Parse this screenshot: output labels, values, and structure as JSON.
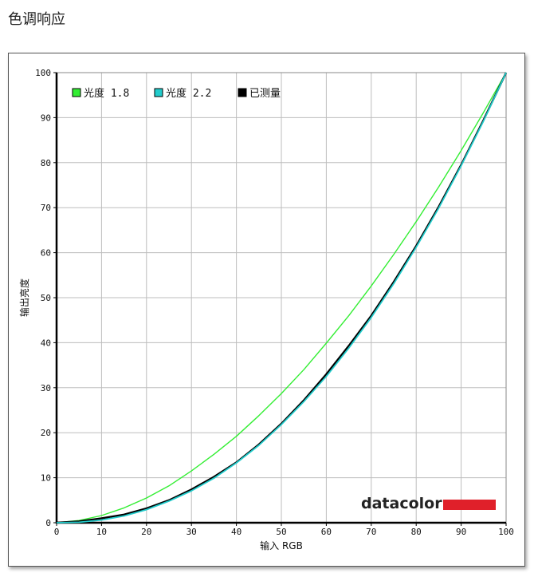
{
  "page": {
    "title": "色调响应"
  },
  "chart_data": {
    "type": "line",
    "title": "",
    "xlabel": "输入 RGB",
    "ylabel": "输出亮度",
    "xlim": [
      0,
      100
    ],
    "ylim": [
      0,
      100
    ],
    "xticks": [
      0,
      10,
      20,
      30,
      40,
      50,
      60,
      70,
      80,
      90,
      100
    ],
    "yticks": [
      0,
      10,
      20,
      30,
      40,
      50,
      60,
      70,
      80,
      90,
      100
    ],
    "grid": true,
    "legend": "top-left",
    "x": [
      0,
      5,
      10,
      15,
      20,
      25,
      30,
      35,
      40,
      45,
      50,
      55,
      60,
      65,
      70,
      75,
      80,
      85,
      90,
      95,
      100
    ],
    "series": [
      {
        "name": "光度 1.8",
        "color": "#33ee33",
        "values": [
          0,
          0.5,
          1.6,
          3.3,
          5.5,
          8.2,
          11.5,
          15.2,
          19.2,
          23.8,
          28.7,
          34.0,
          39.9,
          46.0,
          52.6,
          59.6,
          66.9,
          74.6,
          82.7,
          91.2,
          100
        ]
      },
      {
        "name": "光度 2.2",
        "color": "#22cccc",
        "values": [
          0,
          0.1,
          0.6,
          1.5,
          2.9,
          4.8,
          7.1,
          9.9,
          13.3,
          17.2,
          21.8,
          26.9,
          32.5,
          38.8,
          45.6,
          53.1,
          61.2,
          69.9,
          79.3,
          89.3,
          100
        ]
      },
      {
        "name": "已测量",
        "color": "#000000",
        "values": [
          0,
          0.3,
          1.0,
          1.8,
          3.2,
          5.0,
          7.4,
          10.2,
          13.4,
          17.4,
          22.0,
          27.2,
          33.0,
          39.3,
          46.0,
          53.5,
          61.5,
          70.2,
          79.5,
          89.5,
          100
        ]
      }
    ]
  },
  "brand": {
    "name": "datacolor",
    "accent": "#e0202a"
  }
}
